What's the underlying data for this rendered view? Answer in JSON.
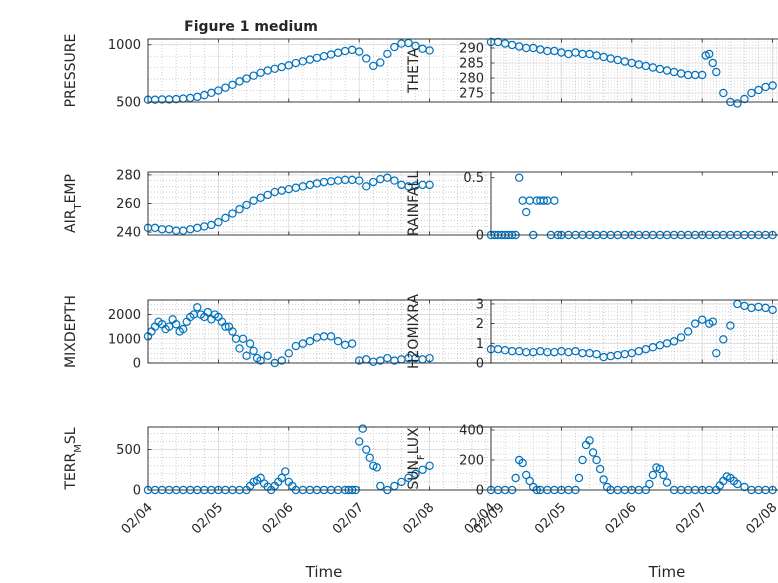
{
  "figure": {
    "title": "Figure 1 medium"
  },
  "colors": {
    "marker": "#0072bd",
    "axis": "#262626",
    "grid": "#b0b0b0",
    "background": "#ffffff"
  },
  "chart_data": [
    {
      "type": "scatter",
      "id": "pressure",
      "title": "Figure 1 medium",
      "ylabel": "PRESSURE",
      "xlabel": "",
      "ylim": [
        500,
        1050
      ],
      "yticks": [
        500,
        1000
      ],
      "xlim": [
        4,
        9
      ],
      "xticks": [
        4,
        5,
        6,
        7,
        8,
        9
      ],
      "xticklabels": [],
      "grid": "on",
      "minor_grid": "on",
      "marker": "open-circle",
      "x": [
        4.0,
        4.1,
        4.2,
        4.3,
        4.4,
        4.5,
        4.6,
        4.7,
        4.8,
        4.9,
        5.0,
        5.1,
        5.2,
        5.3,
        5.4,
        5.5,
        5.6,
        5.7,
        5.8,
        5.9,
        6.0,
        6.1,
        6.2,
        6.3,
        6.4,
        6.5,
        6.6,
        6.7,
        6.8,
        6.9,
        7.0,
        7.1,
        7.2,
        7.3,
        7.4,
        7.5,
        7.6,
        7.7,
        7.8,
        7.9,
        8.0
      ],
      "y": [
        520,
        520,
        522,
        522,
        525,
        530,
        535,
        545,
        560,
        580,
        600,
        625,
        650,
        680,
        705,
        730,
        755,
        775,
        790,
        805,
        820,
        840,
        855,
        870,
        885,
        900,
        915,
        930,
        945,
        955,
        940,
        880,
        815,
        845,
        920,
        980,
        1010,
        1015,
        990,
        965,
        950
      ]
    },
    {
      "type": "scatter",
      "id": "theta",
      "ylabel": "THETA",
      "xlabel": "",
      "ylim": [
        272,
        293
      ],
      "yticks": [
        275,
        280,
        285,
        290
      ],
      "xlim": [
        4,
        9
      ],
      "xticks": [
        4,
        5,
        6,
        7,
        8,
        9
      ],
      "xticklabels": [],
      "grid": "on",
      "minor_grid": "on",
      "marker": "open-circle",
      "x": [
        4.0,
        4.1,
        4.2,
        4.3,
        4.4,
        4.5,
        4.6,
        4.7,
        4.8,
        4.9,
        5.0,
        5.1,
        5.2,
        5.3,
        5.4,
        5.5,
        5.6,
        5.7,
        5.8,
        5.9,
        6.0,
        6.1,
        6.2,
        6.3,
        6.4,
        6.5,
        6.6,
        6.7,
        6.8,
        6.9,
        7.0,
        7.05,
        7.1,
        7.15,
        7.2,
        7.3,
        7.4,
        7.5,
        7.6,
        7.7,
        7.8,
        7.9,
        8.0
      ],
      "y": [
        292,
        292,
        291.5,
        291,
        290.5,
        290,
        290,
        289.5,
        289,
        289,
        288.5,
        288,
        288.5,
        288,
        288,
        287.5,
        287,
        286.5,
        286,
        285.5,
        285,
        284.5,
        284,
        283.5,
        283,
        282.5,
        282,
        281.5,
        281,
        281,
        281,
        287.5,
        288,
        285,
        282,
        275,
        272,
        271.5,
        273,
        275,
        276,
        277,
        277.5
      ]
    },
    {
      "type": "scatter",
      "id": "air_temp",
      "ylabel": "AIR_TEMP",
      "xlabel": "",
      "ylim": [
        238,
        282
      ],
      "yticks": [
        240,
        260,
        280
      ],
      "xlim": [
        4,
        9
      ],
      "xticks": [
        4,
        5,
        6,
        7,
        8,
        9
      ],
      "xticklabels": [],
      "grid": "on",
      "minor_grid": "on",
      "marker": "open-circle",
      "x": [
        4.0,
        4.1,
        4.2,
        4.3,
        4.4,
        4.5,
        4.6,
        4.7,
        4.8,
        4.9,
        5.0,
        5.1,
        5.2,
        5.3,
        5.4,
        5.5,
        5.6,
        5.7,
        5.8,
        5.9,
        6.0,
        6.1,
        6.2,
        6.3,
        6.4,
        6.5,
        6.6,
        6.7,
        6.8,
        6.9,
        7.0,
        7.1,
        7.2,
        7.3,
        7.4,
        7.5,
        7.6,
        7.7,
        7.8,
        7.9,
        8.0
      ],
      "y": [
        243,
        243,
        242,
        242,
        241,
        241,
        242,
        243,
        244,
        245,
        247,
        250,
        253,
        256,
        259,
        262,
        264,
        266,
        268,
        269,
        270,
        271,
        272,
        273,
        274,
        275,
        275.5,
        276,
        276.5,
        276.5,
        276,
        272,
        275,
        277,
        278,
        276,
        273,
        272,
        272.5,
        273,
        273
      ]
    },
    {
      "type": "scatter",
      "id": "rainfall",
      "ylabel": "RAINFALL",
      "xlabel": "",
      "ylim": [
        0,
        0.55
      ],
      "yticks": [
        0,
        0.5
      ],
      "xlim": [
        4,
        9
      ],
      "xticks": [
        4,
        5,
        6,
        7,
        8,
        9
      ],
      "xticklabels": [],
      "grid": "off",
      "marker": "open-circle",
      "x": [
        4.0,
        4.05,
        4.1,
        4.15,
        4.2,
        4.25,
        4.3,
        4.35,
        4.4,
        4.45,
        4.5,
        4.55,
        4.6,
        4.65,
        4.7,
        4.75,
        4.8,
        4.85,
        4.9,
        4.95,
        5.0,
        5.1,
        5.2,
        5.3,
        5.4,
        5.5,
        5.6,
        5.7,
        5.8,
        5.9,
        6.0,
        6.1,
        6.2,
        6.3,
        6.4,
        6.5,
        6.6,
        6.7,
        6.8,
        6.9,
        7.0,
        7.1,
        7.2,
        7.3,
        7.4,
        7.5,
        7.6,
        7.7,
        7.8,
        7.9,
        8.0
      ],
      "y": [
        0,
        0,
        0,
        0,
        0,
        0,
        0,
        0,
        0.5,
        0.3,
        0.2,
        0.3,
        0,
        0.3,
        0.3,
        0.3,
        0.3,
        0,
        0.3,
        0,
        0,
        0,
        0,
        0,
        0,
        0,
        0,
        0,
        0,
        0,
        0,
        0,
        0,
        0,
        0,
        0,
        0,
        0,
        0,
        0,
        0,
        0,
        0,
        0,
        0,
        0,
        0,
        0,
        0,
        0,
        0
      ]
    },
    {
      "type": "scatter",
      "id": "mixdepth",
      "ylabel": "MIXDEPTH",
      "xlabel": "",
      "ylim": [
        0,
        2600
      ],
      "yticks": [
        0,
        1000,
        2000
      ],
      "xlim": [
        4,
        9
      ],
      "xticks": [
        4,
        5,
        6,
        7,
        8,
        9
      ],
      "xticklabels": [],
      "grid": "on",
      "minor_grid": "on",
      "marker": "open-circle",
      "x": [
        4.0,
        4.05,
        4.1,
        4.15,
        4.2,
        4.25,
        4.3,
        4.35,
        4.4,
        4.45,
        4.5,
        4.55,
        4.6,
        4.65,
        4.7,
        4.75,
        4.8,
        4.85,
        4.9,
        4.95,
        5.0,
        5.05,
        5.1,
        5.15,
        5.2,
        5.25,
        5.3,
        5.35,
        5.4,
        5.45,
        5.5,
        5.55,
        5.6,
        5.7,
        5.8,
        5.9,
        6.0,
        6.1,
        6.2,
        6.3,
        6.4,
        6.5,
        6.6,
        6.7,
        6.8,
        6.9,
        7.0,
        7.1,
        7.2,
        7.3,
        7.4,
        7.5,
        7.6,
        7.7,
        7.8,
        7.9,
        8.0
      ],
      "y": [
        1100,
        1300,
        1500,
        1700,
        1600,
        1400,
        1500,
        1800,
        1600,
        1300,
        1400,
        1700,
        1900,
        2000,
        2300,
        2000,
        1900,
        2100,
        1800,
        2000,
        1900,
        1700,
        1500,
        1500,
        1300,
        1000,
        600,
        1000,
        300,
        800,
        500,
        200,
        100,
        300,
        0,
        100,
        400,
        700,
        800,
        900,
        1050,
        1100,
        1100,
        900,
        750,
        800,
        100,
        150,
        50,
        100,
        200,
        100,
        150,
        200,
        200,
        150,
        200
      ]
    },
    {
      "type": "scatter",
      "id": "h2omixra",
      "ylabel": "H2OMIXRA",
      "xlabel": "",
      "ylim": [
        0,
        3.2
      ],
      "yticks": [
        0,
        1,
        2,
        3
      ],
      "xlim": [
        4,
        9
      ],
      "xticks": [
        4,
        5,
        6,
        7,
        8,
        9
      ],
      "xticklabels": [],
      "grid": "on",
      "minor_grid": "on",
      "marker": "open-circle",
      "x": [
        4.0,
        4.1,
        4.2,
        4.3,
        4.4,
        4.5,
        4.6,
        4.7,
        4.8,
        4.9,
        5.0,
        5.1,
        5.2,
        5.3,
        5.4,
        5.5,
        5.6,
        5.7,
        5.8,
        5.9,
        6.0,
        6.1,
        6.2,
        6.3,
        6.4,
        6.5,
        6.6,
        6.7,
        6.8,
        6.9,
        7.0,
        7.1,
        7.15,
        7.2,
        7.3,
        7.4,
        7.5,
        7.6,
        7.7,
        7.8,
        7.9,
        8.0
      ],
      "y": [
        0.7,
        0.7,
        0.65,
        0.6,
        0.6,
        0.55,
        0.55,
        0.6,
        0.55,
        0.55,
        0.6,
        0.55,
        0.6,
        0.5,
        0.5,
        0.45,
        0.3,
        0.35,
        0.4,
        0.45,
        0.5,
        0.6,
        0.7,
        0.8,
        0.9,
        1.0,
        1.1,
        1.3,
        1.6,
        2.0,
        2.2,
        2.0,
        2.1,
        0.5,
        1.2,
        1.9,
        3.0,
        2.9,
        2.8,
        2.85,
        2.8,
        2.7
      ]
    },
    {
      "type": "scatter",
      "id": "terr_msl",
      "ylabel": "TERR_MSL",
      "xlabel": "Time",
      "ylim": [
        0,
        780
      ],
      "yticks": [
        0,
        500
      ],
      "xlim": [
        4,
        9
      ],
      "xticks": [
        4,
        5,
        6,
        7,
        8,
        9
      ],
      "xticklabels": [
        "02/04",
        "02/05",
        "02/06",
        "02/07",
        "02/08",
        "02/09"
      ],
      "grid": "on",
      "minor_grid": "on",
      "marker": "open-circle",
      "x": [
        4.0,
        4.1,
        4.2,
        4.3,
        4.4,
        4.5,
        4.6,
        4.7,
        4.8,
        4.9,
        5.0,
        5.1,
        5.2,
        5.3,
        5.4,
        5.45,
        5.5,
        5.55,
        5.6,
        5.65,
        5.7,
        5.75,
        5.8,
        5.85,
        5.9,
        5.95,
        6.0,
        6.05,
        6.1,
        6.2,
        6.3,
        6.4,
        6.5,
        6.6,
        6.7,
        6.8,
        6.85,
        6.9,
        6.95,
        7.0,
        7.05,
        7.1,
        7.15,
        7.2,
        7.25,
        7.3,
        7.4,
        7.5,
        7.6,
        7.7,
        7.8,
        7.9,
        8.0
      ],
      "y": [
        0,
        0,
        0,
        0,
        0,
        0,
        0,
        0,
        0,
        0,
        0,
        0,
        0,
        0,
        0,
        50,
        100,
        120,
        150,
        80,
        40,
        0,
        50,
        100,
        150,
        230,
        100,
        50,
        0,
        0,
        0,
        0,
        0,
        0,
        0,
        0,
        0,
        0,
        0,
        600,
        760,
        500,
        400,
        300,
        280,
        50,
        0,
        50,
        100,
        150,
        200,
        250,
        300
      ]
    },
    {
      "type": "scatter",
      "id": "sun_flux",
      "ylabel": "SUN_FLUX",
      "xlabel": "Time",
      "ylim": [
        0,
        420
      ],
      "yticks": [
        0,
        200,
        400
      ],
      "xlim": [
        4,
        9
      ],
      "xticks": [
        4,
        5,
        6,
        7,
        8,
        9
      ],
      "xticklabels": [
        "02/04",
        "02/05",
        "02/06",
        "02/07",
        "02/08",
        "02/09"
      ],
      "grid": "on",
      "minor_grid": "on",
      "marker": "open-circle",
      "x": [
        4.0,
        4.1,
        4.2,
        4.3,
        4.35,
        4.4,
        4.45,
        4.5,
        4.55,
        4.6,
        4.65,
        4.7,
        4.8,
        4.9,
        5.0,
        5.1,
        5.2,
        5.25,
        5.3,
        5.35,
        5.4,
        5.45,
        5.5,
        5.55,
        5.6,
        5.65,
        5.7,
        5.8,
        5.9,
        6.0,
        6.1,
        6.2,
        6.25,
        6.3,
        6.35,
        6.4,
        6.45,
        6.5,
        6.6,
        6.7,
        6.8,
        6.9,
        7.0,
        7.1,
        7.2,
        7.25,
        7.3,
        7.35,
        7.4,
        7.45,
        7.5,
        7.6,
        7.7,
        7.8,
        7.9,
        8.0
      ],
      "y": [
        0,
        0,
        0,
        0,
        80,
        200,
        180,
        100,
        60,
        20,
        0,
        0,
        0,
        0,
        0,
        0,
        0,
        80,
        200,
        300,
        330,
        250,
        200,
        140,
        70,
        20,
        0,
        0,
        0,
        0,
        0,
        0,
        40,
        100,
        150,
        140,
        100,
        50,
        0,
        0,
        0,
        0,
        0,
        0,
        0,
        30,
        60,
        90,
        80,
        60,
        40,
        20,
        0,
        0,
        0,
        0
      ]
    }
  ]
}
